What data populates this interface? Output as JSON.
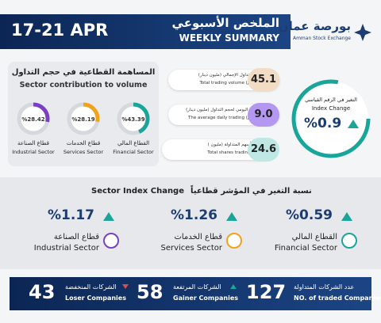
{
  "header": {
    "date": "17-21 APR",
    "title_ar": "الملخص الأسبوعي",
    "title_en": "WEEKLY SUMMARY",
    "logo_ar": "بورصة عمان",
    "logo_en": "Amman Stock Exchange"
  },
  "sector_contribution": {
    "title_ar": "المساهمة القطاعية في حجم التداول",
    "title_en": "Sector contribution to volume",
    "items": [
      {
        "value": 28.42,
        "label": "%28.42",
        "name_ar": "قطاع الصناعة",
        "name_en": "Industrial Sector"
      },
      {
        "value": 28.19,
        "label": "%28.19",
        "name_ar": "قطاع الخدمات",
        "name_en": "Services Sector"
      },
      {
        "value": 43.39,
        "label": "%43.39",
        "name_ar": "القطاع المالي",
        "name_en": "Financial Sector"
      }
    ]
  },
  "stats": [
    {
      "value": "45.1",
      "label_ar": "حجم التداول الإجمالي (مليون دينار)",
      "label_en": "Total trading volume (JD mil)"
    },
    {
      "value": "9.0",
      "label_ar": "المعدل اليومي لحجم التداول (مليون دينار)",
      "label_en": "The average daily trading (JD mil)"
    },
    {
      "value": "24.6",
      "label_ar": "عدد الأسهم المتداولة (مليون )",
      "label_en": "Total shares trading (mil)"
    }
  ],
  "index_change": {
    "label_ar": "التغير في الرقم القياسي",
    "label_en": "Index Change",
    "value": "%0.9"
  },
  "sector_index_change": {
    "title_ar": "نسبة التغير في المؤشر قطاعياً",
    "title_en": "Sector Index Change",
    "items": [
      {
        "value": "%1.17",
        "name_ar": "قطاع الصناعة",
        "name_en": "Industrial Sector"
      },
      {
        "value": "%1.26",
        "name_ar": "قطاع الخدمات",
        "name_en": "Services Sector"
      },
      {
        "value": "%0.59",
        "name_ar": "القطاع المالي",
        "name_en": "Financial Sector"
      }
    ]
  },
  "companies": [
    {
      "value": "43",
      "label_ar": "الشركات المنخفضة",
      "label_en": "Loser Companies"
    },
    {
      "value": "58",
      "label_ar": "الشركات المرتفعة",
      "label_en": "Gainer Companies"
    },
    {
      "value": "127",
      "label_ar": "عدد الشركات المتداولة",
      "label_en": "NO. of traded Companies"
    }
  ]
}
